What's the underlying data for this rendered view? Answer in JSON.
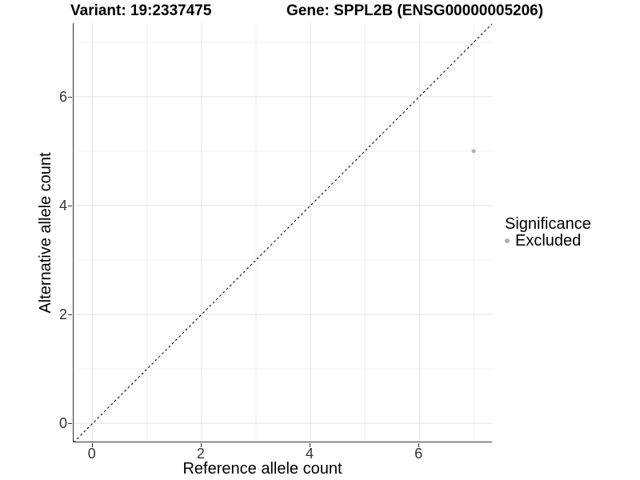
{
  "chart_data": {
    "type": "scatter",
    "title_left": "Variant: 19:2337475",
    "title_right": "Gene: SPPL2B (ENSG00000005206)",
    "xlabel": "Reference allele count",
    "ylabel": "Alternative allele count",
    "xlim": [
      -0.35,
      7.35
    ],
    "ylim": [
      -0.35,
      7.35
    ],
    "x_major_ticks": [
      0,
      2,
      4,
      6
    ],
    "y_major_ticks": [
      0,
      2,
      4,
      6
    ],
    "x_minor_ticks": [
      1,
      3,
      5,
      7
    ],
    "y_minor_ticks": [
      1,
      3,
      5,
      7
    ],
    "grid": true,
    "points": [
      {
        "x": 7,
        "y": 5,
        "significance": "Excluded",
        "color": "#b0b0b0",
        "radius": 2.5
      }
    ],
    "identity_line": {
      "style": "dashed",
      "color": "#000000",
      "from": [
        -0.35,
        -0.35
      ],
      "to": [
        7.35,
        7.35
      ]
    },
    "legend": {
      "title": "Significance",
      "position": "right",
      "items": [
        {
          "label": "Excluded",
          "color": "#b0b0b0"
        }
      ]
    }
  },
  "colors": {
    "grid_major": "#e2e2e2",
    "grid_minor": "#efefef",
    "axis_line": "#333333",
    "tick_label": "#333333",
    "background": "#ffffff"
  }
}
